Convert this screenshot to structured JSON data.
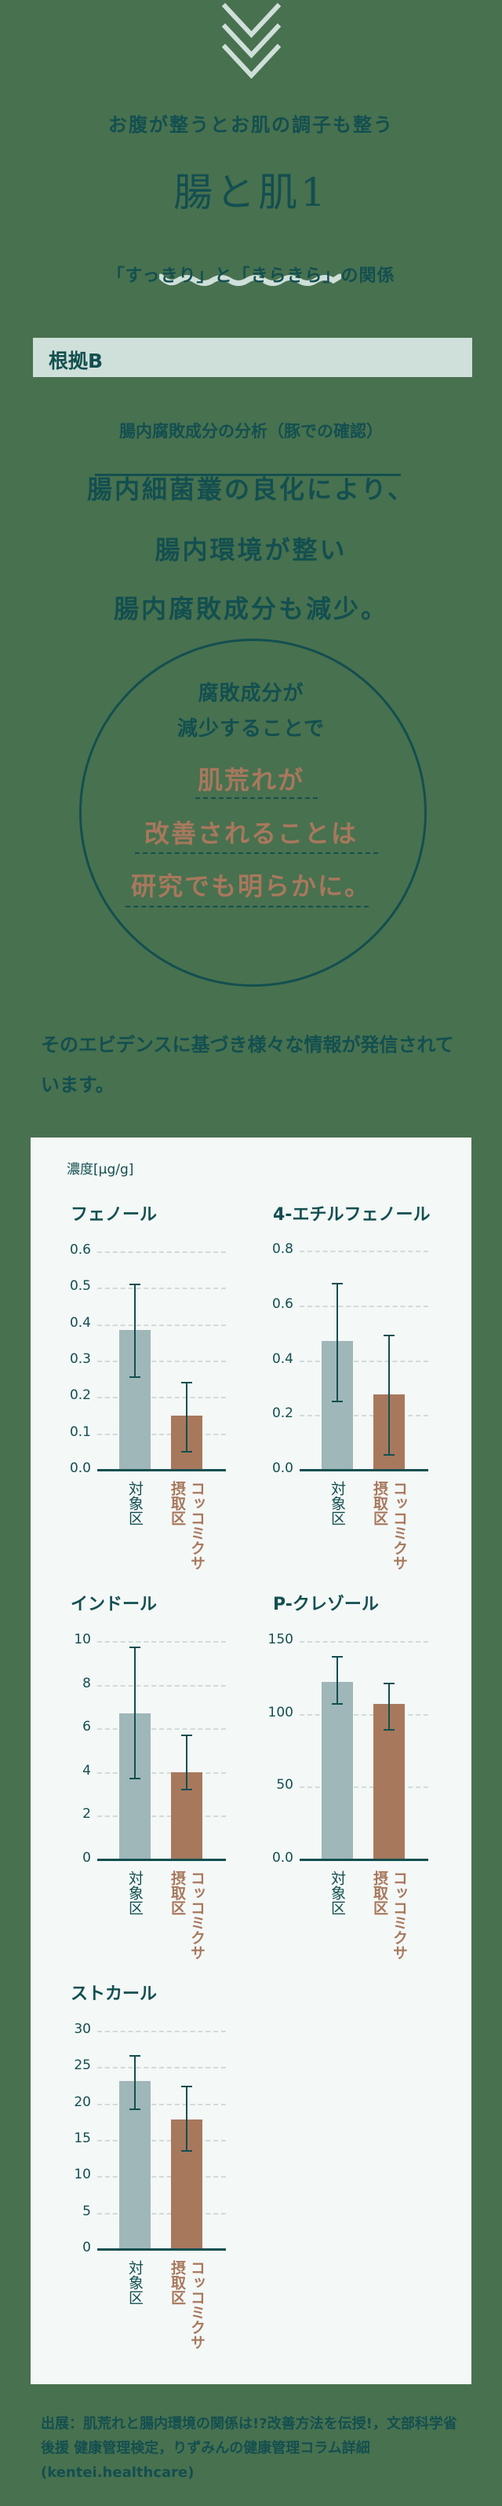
{
  "header": {
    "chevron_icon": "triple-chevron-down-icon",
    "lead": "お腹が整うとお肌の調子も整う",
    "title": "腸と肌1",
    "wave_icon": "wave-divider-icon",
    "subtitle": "「すっきり」と「きらきら」の関係"
  },
  "section": {
    "label": "根拠B",
    "analysis_title": "腸内腐敗成分の分析（豚での確認）",
    "claim_lines": [
      "腸内細菌叢の良化により、",
      "腸内環境が整い",
      "腸内腐敗成分も減少。"
    ]
  },
  "circle": {
    "dark_lines": [
      "腐敗成分が",
      "減少することで"
    ],
    "accent_lines": [
      "肌荒れが",
      "改善されることは",
      "研究でも明らかに。"
    ]
  },
  "evidence_text": "そのエビデンスに基づき様々な情報が発信されています。",
  "panel": {
    "unit_label": "濃度[μg/g]",
    "x_labels": {
      "control": "対象区",
      "treatment_line1": "摂取区",
      "treatment_line2": "コッコミクサ"
    }
  },
  "colors": {
    "background": "#48714f",
    "primary": "#134f50",
    "accent": "#a8785d",
    "control_bar": "#9fb7b8",
    "panel_bg": "#f4f8f7",
    "section_bar": "#cfdfd9"
  },
  "chart_data": [
    {
      "type": "bar",
      "title": "フェノール",
      "ylabel": "濃度[μg/g]",
      "categories": [
        "対象区",
        "コッコミクサ摂取区"
      ],
      "values": [
        0.385,
        0.15
      ],
      "error_low": [
        0.255,
        0.05
      ],
      "error_high": [
        0.51,
        0.24
      ],
      "yticks": [
        "0.0",
        "0.1",
        "0.2",
        "0.3",
        "0.4",
        "0.5",
        "0.6"
      ],
      "ylim": [
        0,
        0.6
      ],
      "grid": true
    },
    {
      "type": "bar",
      "title": "4-エチルフェノール",
      "ylabel": "濃度[μg/g]",
      "categories": [
        "対象区",
        "コッコミクサ摂取区"
      ],
      "values": [
        0.47,
        0.275
      ],
      "error_low": [
        0.25,
        0.055
      ],
      "error_high": [
        0.68,
        0.49
      ],
      "yticks": [
        "0.0",
        "0.2",
        "0.4",
        "0.6",
        "0.8"
      ],
      "ylim": [
        0,
        0.8
      ],
      "grid": true
    },
    {
      "type": "bar",
      "title": "インドール",
      "ylabel": "濃度[μg/g]",
      "categories": [
        "対象区",
        "コッコミクサ摂取区"
      ],
      "values": [
        6.7,
        4.0
      ],
      "error_low": [
        3.7,
        3.2
      ],
      "error_high": [
        9.7,
        5.7
      ],
      "yticks": [
        "0",
        "2",
        "4",
        "6",
        "8",
        "10"
      ],
      "ylim": [
        0,
        10
      ],
      "grid": true
    },
    {
      "type": "bar",
      "title": "P-クレゾール",
      "ylabel": "濃度[μg/g]",
      "categories": [
        "対象区",
        "コッコミクサ摂取区"
      ],
      "values": [
        122,
        107
      ],
      "error_low": [
        107,
        89
      ],
      "error_high": [
        139,
        121
      ],
      "yticks": [
        "0.0",
        "50",
        "100",
        "150"
      ],
      "ylim": [
        0,
        150
      ],
      "grid": true
    },
    {
      "type": "bar",
      "title": "ストカール",
      "ylabel": "濃度[μg/g]",
      "categories": [
        "対象区",
        "コッコミクサ摂取区"
      ],
      "values": [
        23.1,
        17.8
      ],
      "error_low": [
        19.2,
        13.5
      ],
      "error_high": [
        26.5,
        22.3
      ],
      "yticks": [
        "0",
        "5",
        "10",
        "15",
        "20",
        "25",
        "30"
      ],
      "ylim": [
        0,
        30
      ],
      "grid": true
    }
  ],
  "source": "出展：肌荒れと腸内環境の関係は!?改善方法を伝授!，文部科学省後援 健康管理検定，りずみんの健康管理コラム詳細(kentei.healthcare)"
}
